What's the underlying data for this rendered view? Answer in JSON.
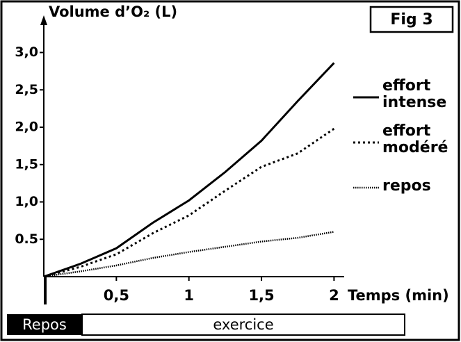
{
  "chart_data": {
    "type": "line",
    "title": "Volume d’O₂ (L)",
    "x_label": "Temps (min)",
    "figure_label": "Fig 3",
    "phase_labels": [
      "Repos",
      "exercice"
    ],
    "x": [
      0,
      0.25,
      0.5,
      0.75,
      1,
      1.25,
      1.5,
      1.75,
      2
    ],
    "series": [
      {
        "name": "effort intense",
        "color": "#000000",
        "dash": "solid",
        "values": [
          0,
          0.17,
          0.38,
          0.72,
          1.02,
          1.4,
          1.82,
          2.35,
          2.86
        ]
      },
      {
        "name": "effort modéré",
        "color": "#000000",
        "dash": "dotted",
        "values": [
          0,
          0.13,
          0.3,
          0.58,
          0.82,
          1.15,
          1.47,
          1.65,
          1.98
        ]
      },
      {
        "name": "repos",
        "color": "#000000",
        "dash": "dense",
        "values": [
          0,
          0.07,
          0.15,
          0.25,
          0.33,
          0.4,
          0.47,
          0.52,
          0.6
        ]
      }
    ],
    "xlim": [
      0,
      2.07
    ],
    "ylim": [
      0,
      3.47
    ],
    "xticks": [
      {
        "value": 0.5,
        "label": "0,5"
      },
      1,
      {
        "value": 1.5,
        "label": "1,5"
      },
      2
    ],
    "yticks": [
      {
        "value": 0.5,
        "label": "0.5"
      },
      {
        "value": 1,
        "label": "1,0"
      },
      {
        "value": 1.5,
        "label": "1,5"
      },
      {
        "value": 2,
        "label": "2,0"
      },
      {
        "value": 2.5,
        "label": "2,5"
      },
      {
        "value": 3,
        "label": "3,0"
      }
    ],
    "grid": false,
    "legend": "right"
  }
}
